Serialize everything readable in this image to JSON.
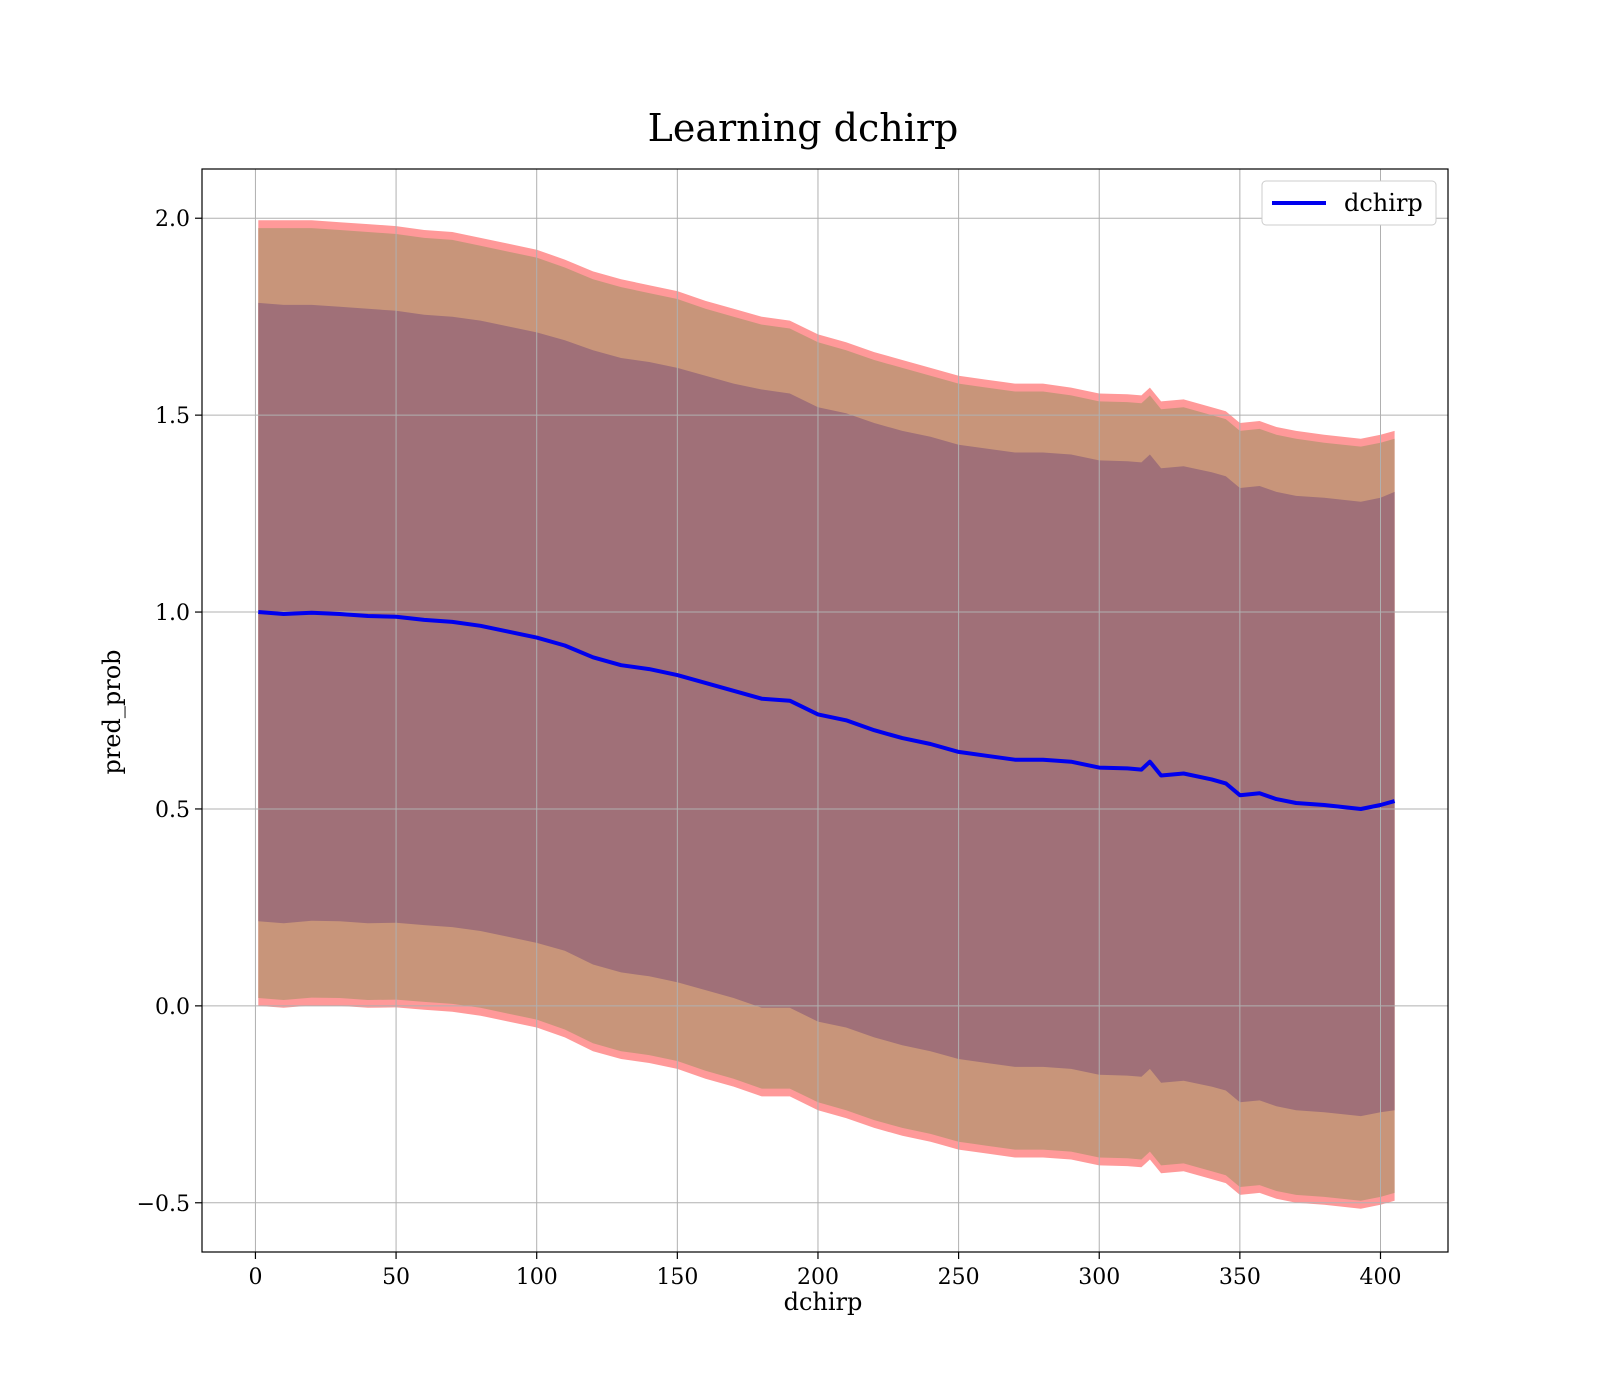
{
  "chart_data": {
    "type": "line",
    "title": "Learning dchirp",
    "xlabel": "dchirp",
    "ylabel": "pred_prob",
    "xlim": [
      -19,
      424
    ],
    "ylim": [
      -0.625,
      2.125
    ],
    "xticks": [
      0,
      50,
      100,
      150,
      200,
      250,
      300,
      350,
      400
    ],
    "yticks": [
      -0.5,
      0.0,
      0.5,
      1.0,
      1.5,
      2.0
    ],
    "xtick_labels": [
      "0",
      "50",
      "100",
      "150",
      "200",
      "250",
      "300",
      "350",
      "400"
    ],
    "ytick_labels": [
      "−0.5",
      "0.0",
      "0.5",
      "1.0",
      "1.5",
      "2.0"
    ],
    "grid": true,
    "legend": {
      "placement": "top-right",
      "entries": [
        "dchirp"
      ]
    },
    "colors": {
      "line": "#0000ee",
      "band_outer": "#ff9999",
      "band_middle": "#c8957a",
      "band_inner": "#a07078",
      "grid": "#b0b0b0"
    },
    "series": [
      {
        "name": "dchirp",
        "x": [
          1,
          10,
          20,
          30,
          40,
          50,
          60,
          70,
          80,
          90,
          100,
          110,
          120,
          130,
          140,
          150,
          160,
          170,
          180,
          190,
          200,
          210,
          220,
          230,
          240,
          250,
          260,
          270,
          280,
          290,
          300,
          310,
          315,
          318,
          322,
          330,
          340,
          345,
          350,
          357,
          363,
          370,
          380,
          393,
          400,
          405
        ],
        "y": [
          1.0,
          0.995,
          0.998,
          0.995,
          0.99,
          0.988,
          0.98,
          0.975,
          0.965,
          0.95,
          0.935,
          0.915,
          0.885,
          0.865,
          0.855,
          0.84,
          0.82,
          0.8,
          0.78,
          0.775,
          0.74,
          0.725,
          0.7,
          0.68,
          0.665,
          0.645,
          0.635,
          0.625,
          0.625,
          0.62,
          0.605,
          0.603,
          0.6,
          0.62,
          0.585,
          0.59,
          0.575,
          0.565,
          0.535,
          0.54,
          0.525,
          0.515,
          0.51,
          0.5,
          0.51,
          0.52
        ],
        "band_inner_upper": [
          1.785,
          1.78,
          1.78,
          1.775,
          1.77,
          1.765,
          1.755,
          1.75,
          1.74,
          1.725,
          1.71,
          1.69,
          1.665,
          1.645,
          1.635,
          1.62,
          1.6,
          1.58,
          1.565,
          1.555,
          1.52,
          1.505,
          1.48,
          1.46,
          1.445,
          1.425,
          1.415,
          1.405,
          1.405,
          1.4,
          1.385,
          1.383,
          1.38,
          1.4,
          1.365,
          1.37,
          1.355,
          1.345,
          1.315,
          1.32,
          1.305,
          1.295,
          1.29,
          1.28,
          1.29,
          1.305
        ],
        "band_inner_lower": [
          0.215,
          0.21,
          0.216,
          0.215,
          0.21,
          0.211,
          0.205,
          0.2,
          0.19,
          0.175,
          0.16,
          0.14,
          0.105,
          0.085,
          0.075,
          0.06,
          0.04,
          0.02,
          -0.005,
          -0.005,
          -0.04,
          -0.055,
          -0.08,
          -0.1,
          -0.115,
          -0.135,
          -0.145,
          -0.155,
          -0.155,
          -0.16,
          -0.175,
          -0.177,
          -0.18,
          -0.16,
          -0.195,
          -0.19,
          -0.205,
          -0.215,
          -0.245,
          -0.24,
          -0.255,
          -0.265,
          -0.27,
          -0.28,
          -0.27,
          -0.265
        ],
        "band_middle_upper": [
          1.975,
          1.975,
          1.975,
          1.97,
          1.965,
          1.96,
          1.95,
          1.945,
          1.93,
          1.915,
          1.9,
          1.875,
          1.845,
          1.825,
          1.81,
          1.795,
          1.77,
          1.75,
          1.73,
          1.72,
          1.685,
          1.665,
          1.64,
          1.62,
          1.6,
          1.58,
          1.57,
          1.56,
          1.56,
          1.55,
          1.535,
          1.533,
          1.53,
          1.55,
          1.515,
          1.52,
          1.5,
          1.49,
          1.46,
          1.465,
          1.45,
          1.44,
          1.43,
          1.42,
          1.43,
          1.44
        ],
        "band_middle_lower": [
          0.02,
          0.015,
          0.021,
          0.02,
          0.015,
          0.016,
          0.01,
          0.005,
          -0.005,
          -0.02,
          -0.035,
          -0.06,
          -0.095,
          -0.115,
          -0.125,
          -0.14,
          -0.165,
          -0.185,
          -0.21,
          -0.21,
          -0.245,
          -0.265,
          -0.29,
          -0.31,
          -0.325,
          -0.345,
          -0.355,
          -0.365,
          -0.365,
          -0.37,
          -0.385,
          -0.387,
          -0.39,
          -0.37,
          -0.405,
          -0.4,
          -0.42,
          -0.43,
          -0.46,
          -0.455,
          -0.47,
          -0.48,
          -0.485,
          -0.495,
          -0.485,
          -0.475
        ],
        "band_outer_upper": [
          1.995,
          1.995,
          1.995,
          1.99,
          1.985,
          1.98,
          1.97,
          1.965,
          1.95,
          1.935,
          1.92,
          1.895,
          1.865,
          1.845,
          1.83,
          1.815,
          1.79,
          1.77,
          1.75,
          1.74,
          1.705,
          1.685,
          1.66,
          1.64,
          1.62,
          1.6,
          1.59,
          1.58,
          1.58,
          1.57,
          1.555,
          1.553,
          1.55,
          1.57,
          1.535,
          1.54,
          1.52,
          1.51,
          1.48,
          1.485,
          1.47,
          1.46,
          1.45,
          1.44,
          1.45,
          1.46
        ],
        "band_outer_lower": [
          0.0,
          -0.005,
          0.001,
          0.0,
          -0.005,
          -0.004,
          -0.01,
          -0.015,
          -0.025,
          -0.04,
          -0.055,
          -0.08,
          -0.115,
          -0.135,
          -0.145,
          -0.16,
          -0.185,
          -0.205,
          -0.23,
          -0.23,
          -0.265,
          -0.285,
          -0.31,
          -0.33,
          -0.345,
          -0.365,
          -0.375,
          -0.385,
          -0.385,
          -0.39,
          -0.405,
          -0.407,
          -0.41,
          -0.39,
          -0.425,
          -0.42,
          -0.44,
          -0.45,
          -0.48,
          -0.475,
          -0.49,
          -0.5,
          -0.505,
          -0.515,
          -0.505,
          -0.495
        ]
      }
    ]
  }
}
